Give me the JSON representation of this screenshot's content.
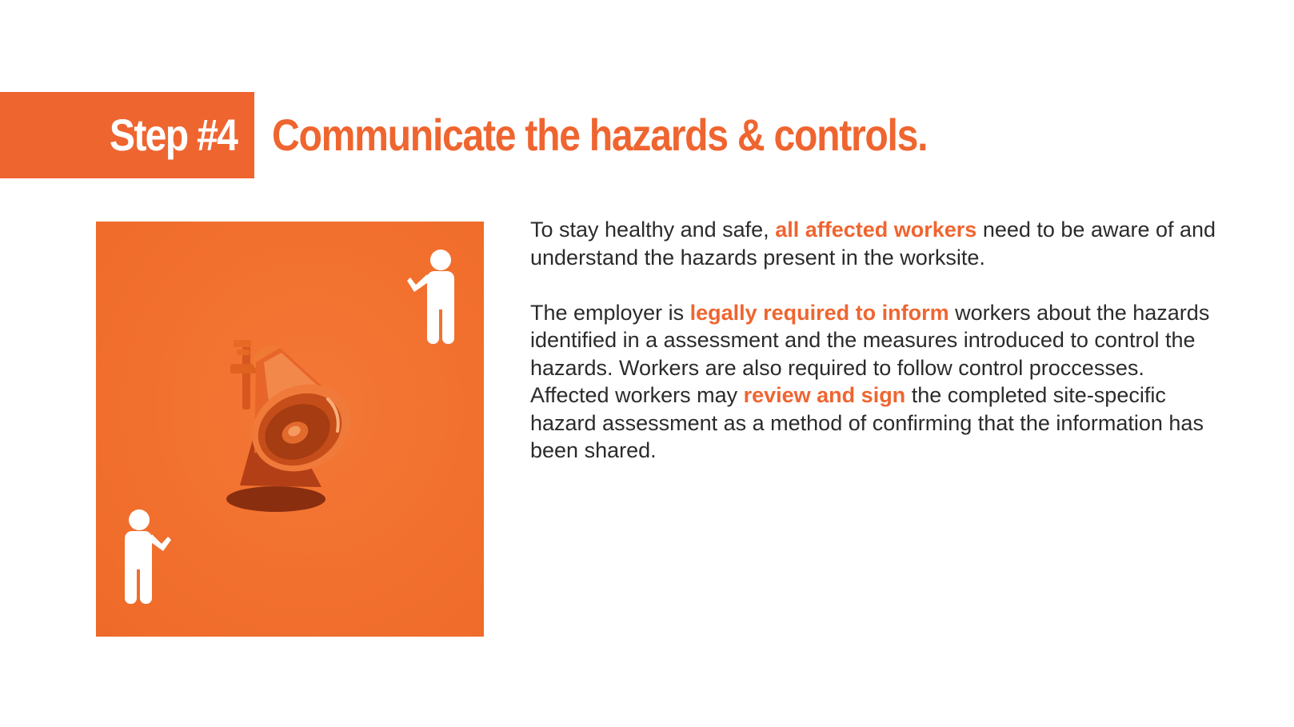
{
  "header": {
    "step_label": "Step #4",
    "title": "Communicate the hazards & controls."
  },
  "colors": {
    "accent": "#ef6530",
    "photo_background": "#f2702e",
    "text": "#2b2b2b",
    "figure": "#ffffff"
  },
  "image": {
    "icons": [
      "person-pointing-icon",
      "person-pointing-icon",
      "megaphone-icon"
    ]
  },
  "paragraphs": [
    {
      "before": "To stay healthy and safe, ",
      "highlight": "all affected workers",
      "after": " need to be aware of and understand the hazards present in the worksite."
    },
    {
      "before": "The employer is ",
      "highlight": "legally required to inform",
      "middle": " workers about the hazards identified in a assessment and the measures introduced to control the hazards. Workers are also required to follow control proccesses. Affected workers may ",
      "highlight2": "review and sign",
      "after": " the completed site-specific hazard assessment as a method of confirming that the information has been shared."
    }
  ]
}
